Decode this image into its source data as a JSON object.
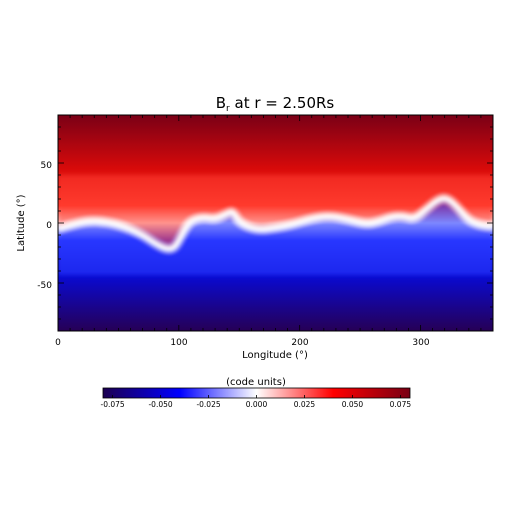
{
  "chart_data": {
    "type": "heatmap",
    "title_main": "B",
    "title_sub": "r",
    "title_rest": " at r = 2.50Rs",
    "xlabel": "Longitude (°)",
    "ylabel": "Latitude (°)",
    "xlim": [
      0,
      360
    ],
    "ylim": [
      -90,
      90
    ],
    "xticks": [
      "0",
      "100",
      "200",
      "300"
    ],
    "yticks": [
      "50",
      "0",
      "-50"
    ],
    "colorbar": {
      "label": "(code units)",
      "range": [
        -0.08,
        0.08
      ],
      "ticks": [
        "-0.075",
        "-0.050",
        "-0.025",
        "0.000",
        "0.025",
        "0.050",
        "0.075"
      ],
      "tick_values": [
        -0.075,
        -0.05,
        -0.025,
        0.0,
        0.025,
        0.05,
        0.075
      ],
      "colors": [
        "#1c0050",
        "#0000ff",
        "#ffffff",
        "#ff0000",
        "#780014"
      ]
    },
    "neutral_line": {
      "lon": [
        0,
        10,
        25,
        40,
        55,
        70,
        80,
        90,
        96,
        100,
        105,
        110,
        120,
        130,
        140,
        145,
        150,
        165,
        180,
        195,
        210,
        225,
        240,
        255,
        265,
        275,
        285,
        295,
        305,
        315,
        322,
        330,
        340,
        350,
        360
      ],
      "lat": [
        -5,
        -2,
        2,
        1,
        -3,
        -10,
        -17,
        -22,
        -21,
        -15,
        -5,
        2,
        5,
        3,
        8,
        10,
        0,
        -6,
        -4,
        -1,
        4,
        6,
        3,
        -1,
        1,
        5,
        6,
        3,
        12,
        20,
        21,
        14,
        2,
        -2,
        -3
      ]
    }
  }
}
